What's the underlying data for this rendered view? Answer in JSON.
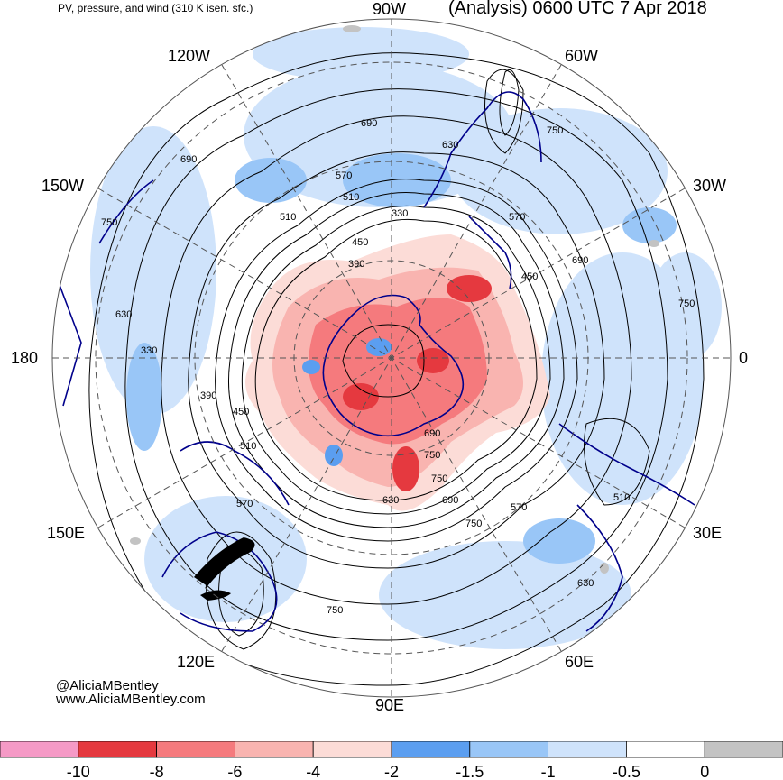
{
  "title_left": "PV, pressure, and wind (310 K isen. sfc.)",
  "title_right": "(Analysis) 0600 UTC 7 Apr 2018",
  "longitude_labels": {
    "top": "90W",
    "upper_left": "120W",
    "upper_right": "60W",
    "left_upper": "150W",
    "right_upper": "30W",
    "left": "180",
    "right": "0",
    "left_lower": "150E",
    "right_lower": "30E",
    "lower_left": "120E",
    "lower_right": "60E",
    "bottom": "90E"
  },
  "contour_labels": [
    "690",
    "630",
    "570",
    "510",
    "330",
    "450",
    "390",
    "750",
    "690",
    "750",
    "750",
    "690",
    "570",
    "450",
    "510",
    "630",
    "330",
    "390",
    "450",
    "510",
    "570",
    "630",
    "690",
    "750",
    "750",
    "690",
    "750",
    "570",
    "510",
    "630",
    "750"
  ],
  "credit": {
    "line1": "@AliciaMBentley",
    "line2": "www.AliciaMBentley.com"
  },
  "colorbar": {
    "colors": [
      "#f59ac6",
      "#e5393f",
      "#f57a7d",
      "#f9b4b0",
      "#fcdcd7",
      "#5b9ef0",
      "#99c6f7",
      "#cfe3fb",
      "#ffffff",
      "#c3c3c3"
    ],
    "tick_labels": [
      "-10",
      "-8",
      "-6",
      "-4",
      "-2",
      "-1.5",
      "-1",
      "-0.5",
      "0"
    ]
  },
  "colors": {
    "pv_high": "#e5393f",
    "pv_mid": "#f9b4b0",
    "pv_low": "#cfe3fb",
    "coast": "#00008b",
    "contour": "#000000"
  }
}
